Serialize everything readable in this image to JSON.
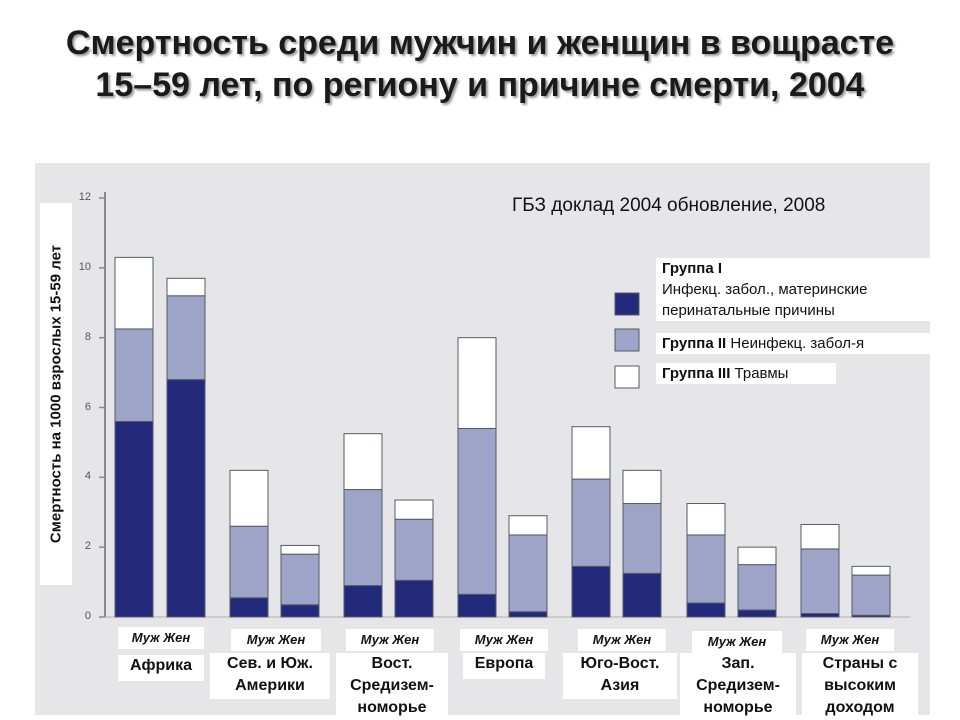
{
  "title": "Смертность среди мужчин и женщин в вощрасте 15–59 лет, по региону и причине смерти, 2004",
  "source_note": "ГБЗ доклад 2004 обновление, 2008",
  "ylabel": "Смертность на 1000 взрослых 15-59 лет",
  "legend": {
    "g1_title": "Группа I",
    "g1_text": "Инфекц. забол., материнские перинатальные причины",
    "g2_title": "Группа II",
    "g2_text": "Неинфекц. забол-я",
    "g3_title": "Группа III",
    "g3_text": "Травмы"
  },
  "sex_labels": [
    "Муж Жен",
    "Муж Жен",
    "Муж Жен",
    "Муж Жен",
    "Муж Жен",
    "Муж Жен",
    "Муж Жен"
  ],
  "region_labels": [
    "Африка",
    "Сев. и Юж. Америки",
    "Вост. Средизем- номорье",
    "Европа",
    "Юго-Вост. Азия",
    "Зап. Средизем- номорье",
    "Страны с высоким доходом"
  ],
  "colors": {
    "group1": "#232a7c",
    "group2": "#9ea3c8",
    "group3": "#ffffff",
    "panel": "#e6e6e9"
  },
  "chart_data": {
    "type": "bar",
    "stacked": true,
    "categories": [
      "Африка М",
      "Африка Ж",
      "Америки М",
      "Америки Ж",
      "Вост. Сред. М",
      "Вост. Сред. Ж",
      "Европа М",
      "Европа Ж",
      "ЮВА М",
      "ЮВА Ж",
      "Зап. Сред. М",
      "Зап. Сред. Ж",
      "Высокий доход М",
      "Высокий доход Ж"
    ],
    "series": [
      {
        "name": "Группа I",
        "values": [
          5.6,
          6.8,
          0.55,
          0.35,
          0.9,
          1.05,
          0.65,
          0.15,
          1.45,
          1.25,
          0.4,
          0.2,
          0.1,
          0.05
        ]
      },
      {
        "name": "Группа II",
        "values": [
          2.65,
          2.4,
          2.05,
          1.45,
          2.75,
          1.75,
          4.75,
          2.2,
          2.5,
          2.0,
          1.95,
          1.3,
          1.85,
          1.15
        ]
      },
      {
        "name": "Группа III",
        "values": [
          2.05,
          0.5,
          1.6,
          0.25,
          1.6,
          0.55,
          2.6,
          0.55,
          1.5,
          0.95,
          0.9,
          0.5,
          0.7,
          0.25
        ]
      }
    ],
    "yticks": [
      0,
      2,
      4,
      6,
      8,
      10,
      12
    ],
    "ylim": [
      0,
      12
    ],
    "ylabel": "Смертность на 1000 взрослых 15-59 лет"
  }
}
